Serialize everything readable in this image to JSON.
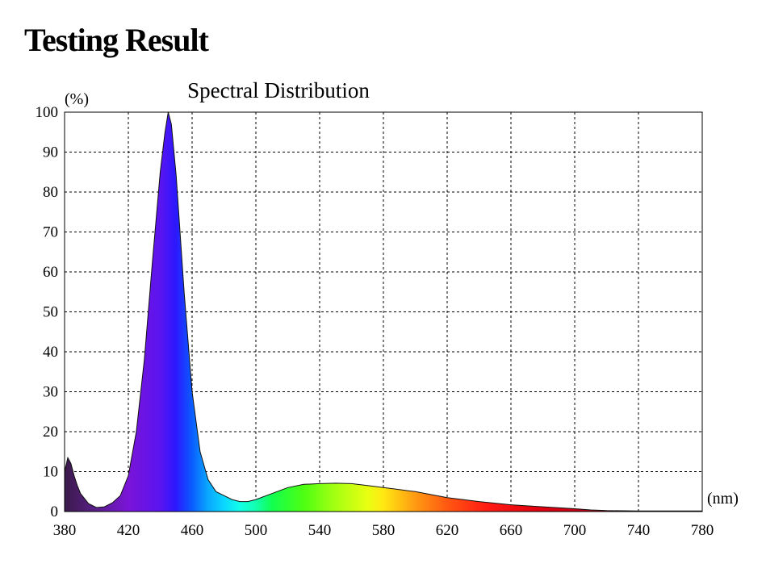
{
  "page": {
    "heading": "Testing Result"
  },
  "chart_data": {
    "type": "area",
    "title": "Spectral Distribution",
    "xlabel": "(nm)",
    "ylabel": "(%)",
    "xlim": [
      380,
      780
    ],
    "ylim": [
      0,
      100
    ],
    "xticks": [
      380,
      420,
      460,
      500,
      540,
      580,
      620,
      660,
      700,
      740,
      780
    ],
    "yticks": [
      0,
      10,
      20,
      30,
      40,
      50,
      60,
      70,
      80,
      90,
      100
    ],
    "grid": true,
    "fill": "visible spectrum colors by wavelength",
    "series": [
      {
        "x": [
          380,
          382,
          384,
          386,
          388,
          390,
          395,
          400,
          405,
          410,
          415,
          420,
          425,
          430,
          435,
          440,
          443,
          445,
          447,
          450,
          455,
          460,
          465,
          470,
          475,
          480,
          485,
          490,
          495,
          500,
          510,
          520,
          530,
          540,
          550,
          560,
          570,
          580,
          590,
          600,
          620,
          640,
          660,
          680,
          700,
          710,
          720,
          740,
          760,
          780
        ],
        "y": [
          10,
          13.5,
          12,
          9,
          6.5,
          4.5,
          2,
          1,
          1.2,
          2.2,
          4,
          9,
          20,
          38,
          62,
          85,
          95,
          100,
          97,
          84,
          55,
          30,
          15,
          8,
          5,
          4,
          3,
          2.5,
          2.5,
          3,
          4.5,
          6,
          6.8,
          7,
          7.1,
          7,
          6.5,
          6,
          5.5,
          5,
          3.5,
          2.5,
          1.7,
          1.2,
          0.7,
          0.4,
          0.25,
          0.15,
          0.15,
          0.15
        ]
      }
    ]
  }
}
